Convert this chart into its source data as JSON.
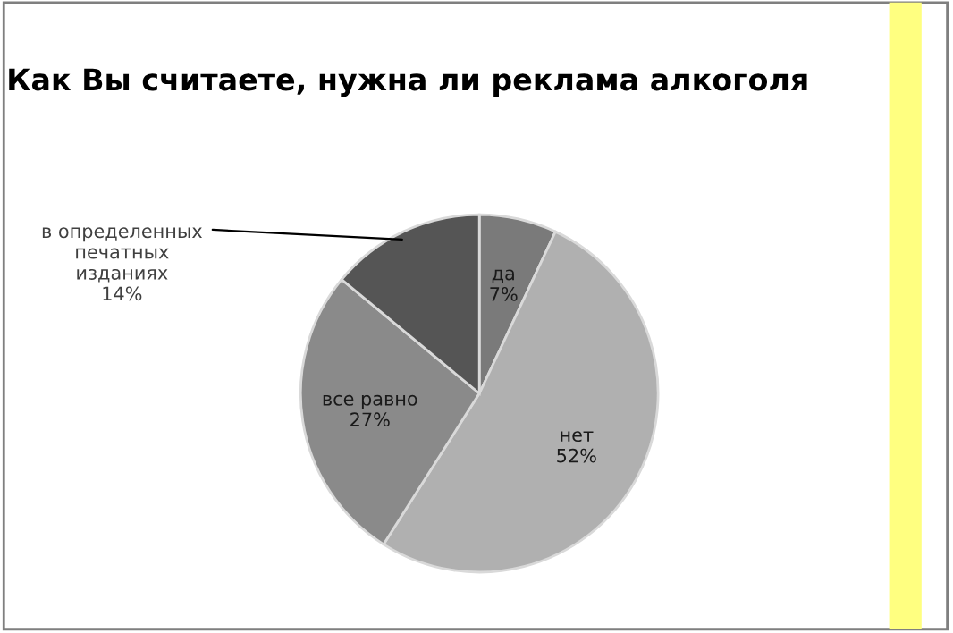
{
  "chart_data": {
    "type": "pie",
    "title": "Как Вы считаете, нужна ли реклама алкоголя",
    "categories": [
      "да",
      "нет",
      "все равно",
      "в определенных печатных изданиях"
    ],
    "values": [
      7,
      52,
      27,
      14
    ],
    "colors": [
      "#7a7a7a",
      "#b0b0b0",
      "#8a8a8a",
      "#555555"
    ],
    "value_labels": [
      "7%",
      "52%",
      "27%",
      "14%"
    ],
    "legend": false
  }
}
